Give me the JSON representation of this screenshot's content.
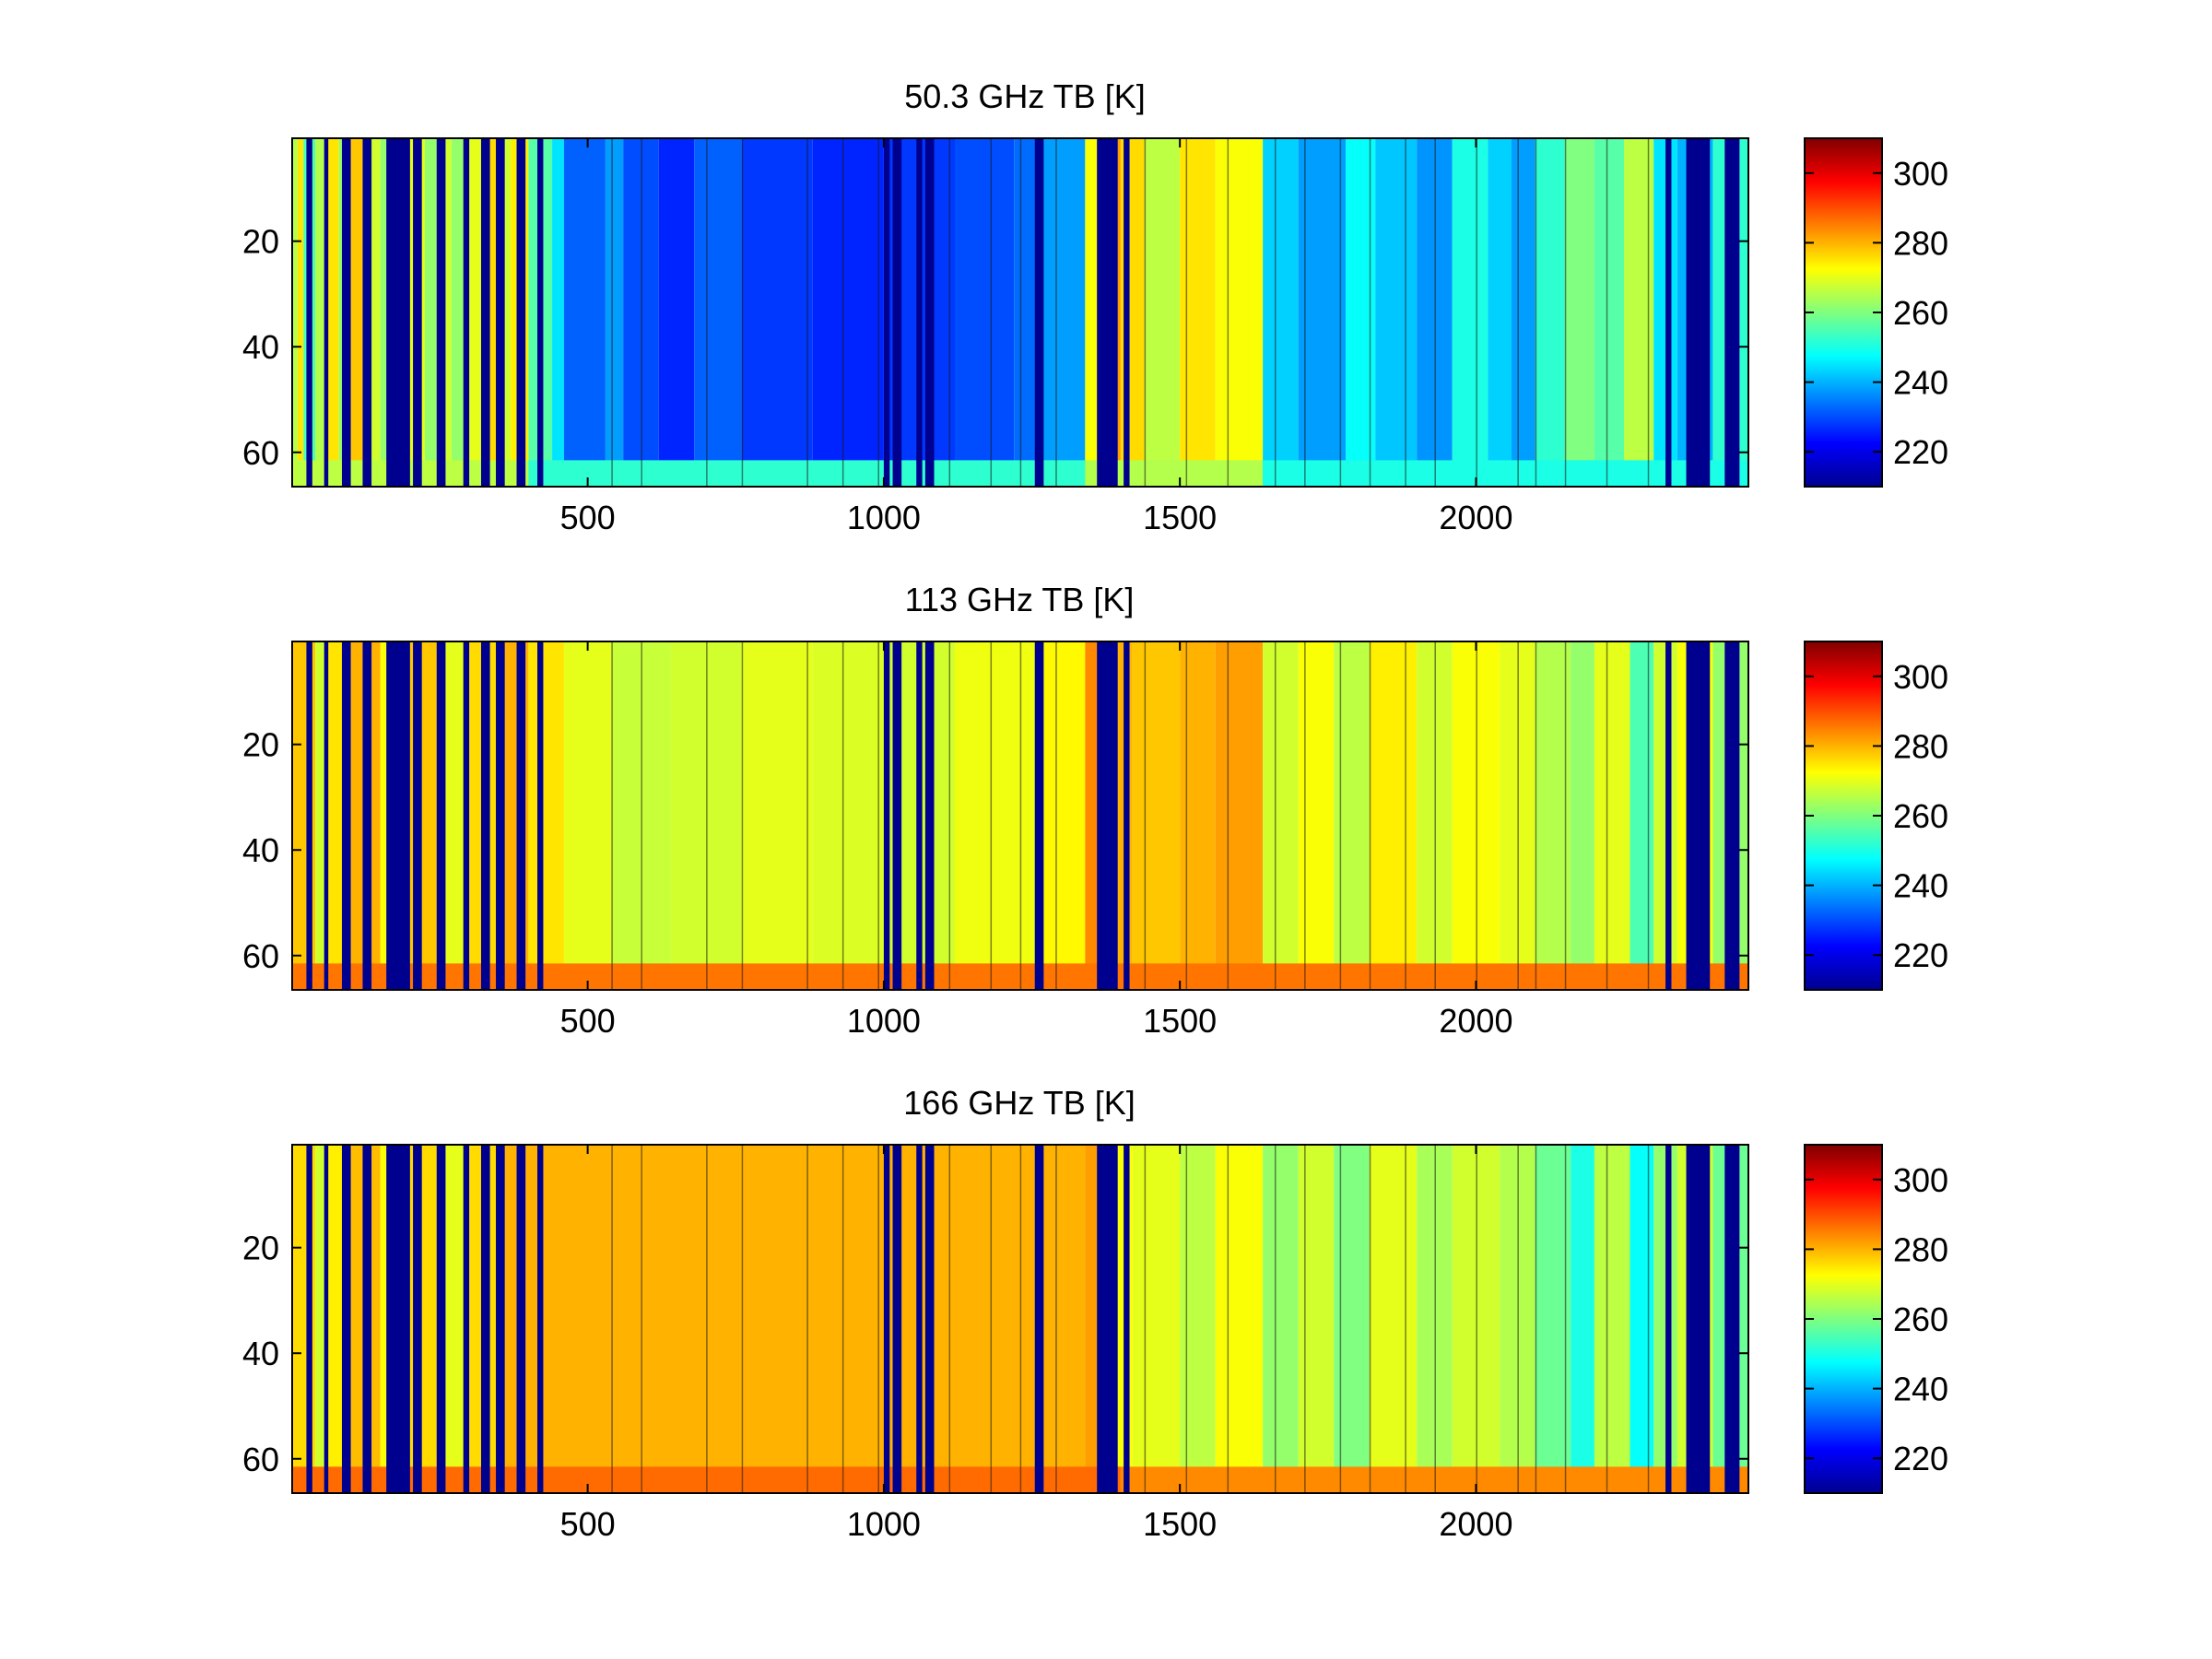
{
  "colormap": "jet",
  "colors": {
    "background": "#ffffff",
    "axes": "#000000",
    "missing": "#00008f"
  },
  "chart_data": [
    {
      "type": "heatmap",
      "title": "50.3 GHz TB [K]",
      "xlabel": "",
      "ylabel": "",
      "xlim": [
        1,
        2460
      ],
      "ylim": [
        1,
        66
      ],
      "y_reversed": true,
      "xticks": [
        "500",
        "1000",
        "1500",
        "2000"
      ],
      "yticks": [
        "20",
        "40",
        "60"
      ],
      "clim": [
        210,
        310
      ],
      "cticks": [
        "220",
        "240",
        "260",
        "280",
        "300"
      ],
      "bottom_rows": {
        "from": 62,
        "to": 66
      },
      "segments": [
        [
          1,
          10,
          265
        ],
        [
          10,
          20,
          275
        ],
        [
          20,
          40,
          255
        ],
        [
          40,
          55,
          265
        ],
        [
          55,
          80,
          275
        ],
        [
          80,
          100,
          262
        ],
        [
          100,
          120,
          278
        ],
        [
          120,
          150,
          268
        ],
        [
          150,
          180,
          262
        ],
        [
          180,
          225,
          270
        ],
        [
          225,
          250,
          262
        ],
        [
          250,
          270,
          268
        ],
        [
          270,
          290,
          262
        ],
        [
          290,
          320,
          270
        ],
        [
          320,
          345,
          276
        ],
        [
          345,
          370,
          268
        ],
        [
          370,
          400,
          274
        ],
        [
          400,
          440,
          256
        ],
        [
          440,
          460,
          245
        ],
        [
          460,
          530,
          232
        ],
        [
          530,
          560,
          238
        ],
        [
          560,
          620,
          230
        ],
        [
          620,
          680,
          226
        ],
        [
          680,
          760,
          232
        ],
        [
          760,
          880,
          228
        ],
        [
          880,
          1000,
          226
        ],
        [
          1000,
          1120,
          228
        ],
        [
          1120,
          1220,
          230
        ],
        [
          1220,
          1260,
          233
        ],
        [
          1260,
          1340,
          238
        ],
        [
          1340,
          1360,
          272
        ],
        [
          1360,
          1400,
          282
        ],
        [
          1400,
          1440,
          276
        ],
        [
          1440,
          1500,
          266
        ],
        [
          1500,
          1560,
          275
        ],
        [
          1560,
          1640,
          272
        ],
        [
          1640,
          1700,
          243
        ],
        [
          1700,
          1780,
          238
        ],
        [
          1780,
          1830,
          248
        ],
        [
          1830,
          1900,
          242
        ],
        [
          1900,
          1960,
          237
        ],
        [
          1960,
          2020,
          250
        ],
        [
          2020,
          2060,
          243
        ],
        [
          2060,
          2100,
          238
        ],
        [
          2100,
          2150,
          252
        ],
        [
          2150,
          2200,
          260
        ],
        [
          2200,
          2250,
          256
        ],
        [
          2250,
          2300,
          266
        ],
        [
          2300,
          2340,
          245
        ],
        [
          2340,
          2400,
          240
        ],
        [
          2400,
          2460,
          252
        ]
      ],
      "bottom_segments": [
        [
          1,
          400,
          266
        ],
        [
          400,
          1340,
          252
        ],
        [
          1340,
          1640,
          265
        ],
        [
          1640,
          2460,
          250
        ]
      ]
    },
    {
      "type": "heatmap",
      "title": "113 GHz TB [K]",
      "xlabel": "",
      "ylabel": "",
      "xlim": [
        1,
        2460
      ],
      "ylim": [
        1,
        66
      ],
      "y_reversed": true,
      "xticks": [
        "500",
        "1000",
        "1500",
        "2000"
      ],
      "yticks": [
        "20",
        "40",
        "60"
      ],
      "clim": [
        210,
        310
      ],
      "cticks": [
        "220",
        "240",
        "260",
        "280",
        "300"
      ],
      "bottom_rows": {
        "from": 62,
        "to": 66
      },
      "segments": [
        [
          1,
          40,
          278
        ],
        [
          40,
          60,
          268
        ],
        [
          60,
          100,
          275
        ],
        [
          100,
          150,
          280
        ],
        [
          150,
          200,
          272
        ],
        [
          200,
          260,
          278
        ],
        [
          260,
          300,
          270
        ],
        [
          300,
          350,
          276
        ],
        [
          350,
          400,
          280
        ],
        [
          400,
          460,
          275
        ],
        [
          460,
          540,
          270
        ],
        [
          540,
          640,
          267
        ],
        [
          640,
          760,
          268
        ],
        [
          760,
          880,
          270
        ],
        [
          880,
          1000,
          269
        ],
        [
          1000,
          1120,
          268
        ],
        [
          1120,
          1260,
          271
        ],
        [
          1260,
          1340,
          273
        ],
        [
          1340,
          1380,
          284
        ],
        [
          1380,
          1420,
          280
        ],
        [
          1420,
          1500,
          278
        ],
        [
          1500,
          1560,
          280
        ],
        [
          1560,
          1640,
          282
        ],
        [
          1640,
          1700,
          268
        ],
        [
          1700,
          1760,
          272
        ],
        [
          1760,
          1820,
          266
        ],
        [
          1820,
          1900,
          274
        ],
        [
          1900,
          1960,
          268
        ],
        [
          1960,
          2040,
          272
        ],
        [
          2040,
          2100,
          270
        ],
        [
          2100,
          2160,
          265
        ],
        [
          2160,
          2200,
          262
        ],
        [
          2200,
          2260,
          270
        ],
        [
          2260,
          2300,
          255
        ],
        [
          2300,
          2340,
          268
        ],
        [
          2340,
          2400,
          272
        ],
        [
          2400,
          2460,
          262
        ]
      ],
      "bottom_segments": [
        [
          1,
          2460,
          286
        ]
      ]
    },
    {
      "type": "heatmap",
      "title": "166 GHz TB [K]",
      "xlabel": "",
      "ylabel": "",
      "xlim": [
        1,
        2460
      ],
      "ylim": [
        1,
        66
      ],
      "y_reversed": true,
      "xticks": [
        "500",
        "1000",
        "1500",
        "2000"
      ],
      "yticks": [
        "20",
        "40",
        "60"
      ],
      "clim": [
        210,
        310
      ],
      "cticks": [
        "220",
        "240",
        "260",
        "280",
        "300"
      ],
      "bottom_rows": {
        "from": 62,
        "to": 66
      },
      "segments": [
        [
          1,
          40,
          276
        ],
        [
          40,
          60,
          268
        ],
        [
          60,
          100,
          274
        ],
        [
          100,
          150,
          279
        ],
        [
          150,
          200,
          272
        ],
        [
          200,
          260,
          276
        ],
        [
          260,
          300,
          270
        ],
        [
          300,
          350,
          276
        ],
        [
          350,
          420,
          280
        ],
        [
          420,
          1340,
          280
        ],
        [
          1340,
          1380,
          282
        ],
        [
          1380,
          1420,
          272
        ],
        [
          1420,
          1500,
          270
        ],
        [
          1500,
          1560,
          266
        ],
        [
          1560,
          1640,
          272
        ],
        [
          1640,
          1700,
          262
        ],
        [
          1700,
          1760,
          268
        ],
        [
          1760,
          1820,
          260
        ],
        [
          1820,
          1900,
          270
        ],
        [
          1900,
          1960,
          264
        ],
        [
          1960,
          2040,
          268
        ],
        [
          2040,
          2100,
          265
        ],
        [
          2100,
          2160,
          258
        ],
        [
          2160,
          2200,
          250
        ],
        [
          2200,
          2260,
          266
        ],
        [
          2260,
          2300,
          248
        ],
        [
          2300,
          2340,
          262
        ],
        [
          2340,
          2400,
          268
        ],
        [
          2400,
          2460,
          258
        ]
      ],
      "bottom_segments": [
        [
          1,
          1400,
          287
        ],
        [
          1400,
          2460,
          284
        ]
      ]
    }
  ],
  "missing_columns": [
    [
      25,
      35
    ],
    [
      55,
      62
    ],
    [
      85,
      100
    ],
    [
      120,
      135
    ],
    [
      160,
      200
    ],
    [
      205,
      220
    ],
    [
      245,
      260
    ],
    [
      290,
      300
    ],
    [
      320,
      335
    ],
    [
      345,
      360
    ],
    [
      380,
      395
    ],
    [
      415,
      425
    ],
    [
      1000,
      1010
    ],
    [
      1015,
      1030
    ],
    [
      1055,
      1065
    ],
    [
      1070,
      1085
    ],
    [
      1255,
      1270
    ],
    [
      1360,
      1395
    ],
    [
      1405,
      1415
    ],
    [
      2320,
      2330
    ],
    [
      2355,
      2395
    ],
    [
      2420,
      2445
    ]
  ],
  "thin_lines": [
    540,
    590,
    700,
    760,
    870,
    930,
    990,
    1110,
    1180,
    1230,
    1290,
    1440,
    1510,
    1580,
    1660,
    1710,
    1770,
    1820,
    1880,
    1930,
    2000,
    2070,
    2100,
    2150,
    2220,
    2290
  ]
}
